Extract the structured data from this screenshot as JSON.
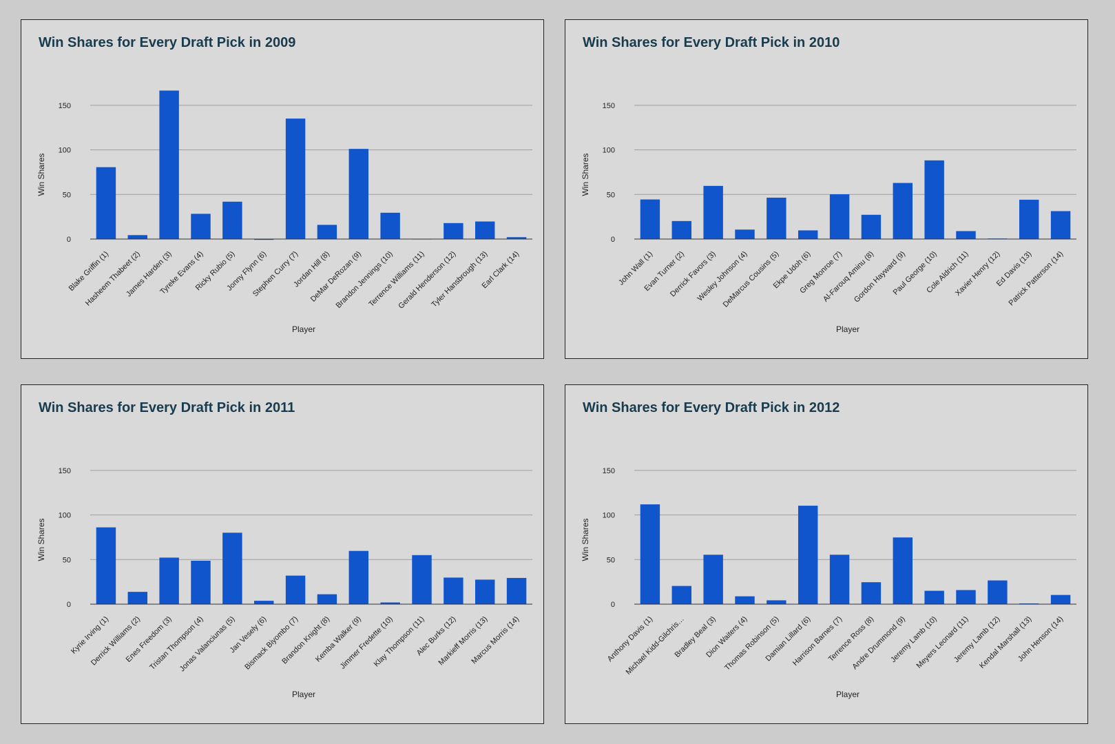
{
  "chart_data": [
    {
      "type": "bar",
      "title": "Win Shares for Every Draft Pick in 2009",
      "xlabel": "Player",
      "ylabel": "Win Shares",
      "ylim": [
        0,
        180
      ],
      "yticks": [
        "0",
        "50",
        "100",
        "150"
      ],
      "grid": true,
      "bar_color": "#1155cc",
      "categories": [
        "Blake Griffin (1)",
        "Hasheem Thabeet (2)",
        "James Harden (3)",
        "Tyreke Evans (4)",
        "Ricky Rubio (5)",
        "Jonny Flynn (6)",
        "Stephen Curry (7)",
        "Jordan Hill (8)",
        "DeMar DeRozan (9)",
        "Brandon Jennings (10)",
        "Terrence Williams (11)",
        "Gerald Henderson (12)",
        "Tyler Hansbrough (13)",
        "Earl Clark (14)"
      ],
      "values": [
        80.6,
        4.4,
        166.5,
        28.3,
        41.9,
        -0.9,
        135.1,
        15.9,
        101.1,
        29.5,
        0,
        17.9,
        19.7,
        2.1
      ]
    },
    {
      "type": "bar",
      "title": "Win Shares for Every Draft Pick in 2010",
      "xlabel": "Player",
      "ylabel": "Win Shares",
      "ylim": [
        0,
        180
      ],
      "yticks": [
        "0",
        "50",
        "100",
        "150"
      ],
      "grid": true,
      "bar_color": "#1155cc",
      "categories": [
        "John Wall (1)",
        "Evan Turner (2)",
        "Derrick Favors (3)",
        "Wesley Johnson (4)",
        "DeMarcus Cousins (5)",
        "Ekpe Udoh (6)",
        "Greg Monroe (7)",
        "Al-Farouq Aminu (8)",
        "Gordon Hayward (9)",
        "Paul George (10)",
        "Cole Aldrich (11)",
        "Xavier Henry (12)",
        "Ed Davis (13)",
        "Patrick Patterson (14)"
      ],
      "values": [
        44.4,
        20.2,
        59.6,
        10.6,
        46.4,
        9.7,
        50.2,
        27.2,
        62.9,
        88.2,
        8.9,
        0.6,
        44.1,
        31.3
      ]
    },
    {
      "type": "bar",
      "title": "Win Shares for Every Draft Pick in 2011",
      "xlabel": "Player",
      "ylabel": "Win Shares",
      "ylim": [
        0,
        180
      ],
      "yticks": [
        "0",
        "50",
        "100",
        "150"
      ],
      "grid": true,
      "bar_color": "#1155cc",
      "categories": [
        "Kyrie Irving (1)",
        "Derrick Williams (2)",
        "Enes Freedom (3)",
        "Tristan Thompson (4)",
        "Jonas Valanciunas (5)",
        "Jan Vesely (6)",
        "Bismack Biyombo (7)",
        "Brandon Knight (8)",
        "Kemba Walker (9)",
        "Jimmer Fredette (10)",
        "Klay Thompson (11)",
        "Alec Burks (12)",
        "Markieff Morris (13)",
        "Marcus Morris (14)"
      ],
      "values": [
        86.1,
        13.8,
        52.2,
        48.7,
        80.1,
        3.8,
        32.0,
        11.1,
        59.7,
        1.9,
        55.0,
        29.8,
        27.5,
        29.4
      ]
    },
    {
      "type": "bar",
      "title": "Win Shares for Every Draft Pick in 2012",
      "xlabel": "Player",
      "ylabel": "Win Shares",
      "ylim": [
        0,
        180
      ],
      "yticks": [
        "0",
        "50",
        "100",
        "150"
      ],
      "grid": true,
      "bar_color": "#1155cc",
      "categories": [
        "Anthony Davis (1)",
        "Michael Kidd-Gilchris…",
        "Bradley Beal (3)",
        "Dion Waiters (4)",
        "Thomas Robinson (5)",
        "Damian Lillard (6)",
        "Harrison Barnes (7)",
        "Terrence Ross (8)",
        "Andre Drummond (9)",
        "Jeremy Lamb (10)",
        "Meyers Leonard (11)",
        "Jeremy Lamb (12)",
        "Kendal Marshall (13)",
        "John Henson (14)"
      ],
      "values": [
        111.9,
        20.4,
        55.4,
        8.8,
        4.3,
        110.4,
        55.4,
        24.6,
        74.8,
        15.0,
        15.8,
        26.6,
        0.8,
        10.3
      ]
    }
  ]
}
